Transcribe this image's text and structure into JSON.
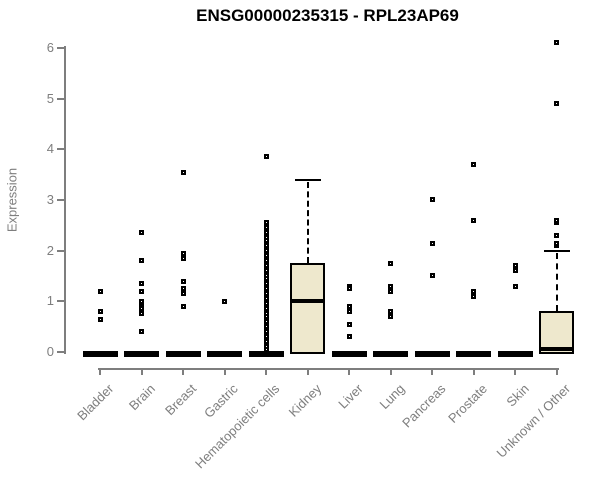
{
  "chart_data": {
    "type": "boxplot",
    "title": "ENSG00000235315 - RPL23AP69",
    "ylabel": "Expression",
    "xlabel": "",
    "ylim": [
      0,
      6
    ],
    "yticks": [
      0,
      1,
      2,
      3,
      4,
      5,
      6
    ],
    "grid": false,
    "legend": "none",
    "colors": {
      "box_fill": "#EEE8CD",
      "box_border": "#000000",
      "median": "#000000",
      "point": "#000000",
      "axis": "#7E7E7E",
      "title": "#000000",
      "background": "#FFFFFF"
    },
    "categories": [
      "Bladder",
      "Brain",
      "Breast",
      "Gastric",
      "Hematopoietic cells",
      "Kidney",
      "Liver",
      "Lung",
      "Pancreas",
      "Prostate",
      "Skin",
      "Unknown / Other"
    ],
    "groups": [
      {
        "name": "Bladder",
        "collapsed": true,
        "box": {
          "q1": 0,
          "median": 0,
          "q3": 0,
          "whisker_low": 0,
          "whisker_high": 0
        },
        "outliers": [
          1.2,
          0.8,
          0.65
        ]
      },
      {
        "name": "Brain",
        "collapsed": true,
        "box": {
          "q1": 0,
          "median": 0,
          "q3": 0,
          "whisker_low": 0,
          "whisker_high": 0
        },
        "outliers": [
          2.35,
          1.8,
          1.35,
          1.2,
          1.0,
          0.9,
          0.85,
          0.75,
          0.4
        ]
      },
      {
        "name": "Breast",
        "collapsed": true,
        "box": {
          "q1": 0,
          "median": 0,
          "q3": 0,
          "whisker_low": 0,
          "whisker_high": 0
        },
        "outliers": [
          3.55,
          1.95,
          1.85,
          1.4,
          1.25,
          1.15,
          0.9
        ]
      },
      {
        "name": "Gastric",
        "collapsed": true,
        "box": {
          "q1": 0,
          "median": 0,
          "q3": 0,
          "whisker_low": 0,
          "whisker_high": 0
        },
        "outliers": [
          1.0
        ]
      },
      {
        "name": "Hematopoietic cells",
        "collapsed": true,
        "box": {
          "q1": 0,
          "median": 0,
          "q3": 0,
          "whisker_low": 0,
          "whisker_high": 0
        },
        "outliers": [
          3.85,
          2.55,
          2.5,
          2.45,
          2.4,
          2.35,
          2.3,
          2.25,
          2.2,
          2.15,
          2.1,
          2.05,
          2.0,
          1.95,
          1.9,
          1.85,
          1.8,
          1.75,
          1.7,
          1.65,
          1.6,
          1.55,
          1.5,
          1.45,
          1.4,
          1.35,
          1.3,
          1.25,
          1.2,
          1.15,
          1.1,
          1.05,
          1.0,
          0.95,
          0.9,
          0.85,
          0.8,
          0.75,
          0.7,
          0.65,
          0.6,
          0.55,
          0.5,
          0.45,
          0.4,
          0.35,
          0.3,
          0.25,
          0.2,
          0.15,
          0.1,
          0.05
        ]
      },
      {
        "name": "Kidney",
        "collapsed": false,
        "box": {
          "q1": 0,
          "median": 1.0,
          "q3": 1.75,
          "whisker_low": 0,
          "whisker_high": 3.4
        },
        "outliers": []
      },
      {
        "name": "Liver",
        "collapsed": true,
        "box": {
          "q1": 0,
          "median": 0,
          "q3": 0,
          "whisker_low": 0,
          "whisker_high": 0
        },
        "outliers": [
          1.3,
          1.25,
          0.9,
          0.8,
          0.55,
          0.3
        ]
      },
      {
        "name": "Lung",
        "collapsed": true,
        "box": {
          "q1": 0,
          "median": 0,
          "q3": 0,
          "whisker_low": 0,
          "whisker_high": 0
        },
        "outliers": [
          1.75,
          1.3,
          1.2,
          0.8,
          0.7
        ]
      },
      {
        "name": "Pancreas",
        "collapsed": true,
        "box": {
          "q1": 0,
          "median": 0,
          "q3": 0,
          "whisker_low": 0,
          "whisker_high": 0
        },
        "outliers": [
          3.0,
          2.15,
          1.5
        ]
      },
      {
        "name": "Prostate",
        "collapsed": true,
        "box": {
          "q1": 0,
          "median": 0,
          "q3": 0,
          "whisker_low": 0,
          "whisker_high": 0
        },
        "outliers": [
          3.7,
          2.6,
          1.2,
          1.1
        ]
      },
      {
        "name": "Skin",
        "collapsed": true,
        "box": {
          "q1": 0,
          "median": 0,
          "q3": 0,
          "whisker_low": 0,
          "whisker_high": 0
        },
        "outliers": [
          1.7,
          1.6,
          1.3
        ]
      },
      {
        "name": "Unknown / Other",
        "collapsed": false,
        "box": {
          "q1": 0,
          "median": 0.05,
          "q3": 0.8,
          "whisker_low": 0,
          "whisker_high": 2.0
        },
        "outliers": [
          2.1,
          2.15,
          2.3,
          2.55,
          2.6,
          4.9,
          6.1
        ]
      }
    ]
  }
}
